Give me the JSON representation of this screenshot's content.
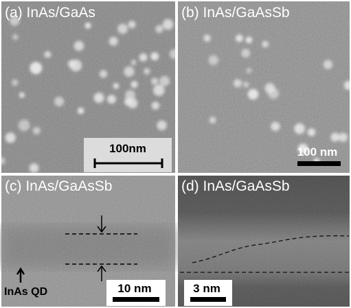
{
  "panels": [
    {
      "label": "(a) InAs/GaAs",
      "scale_bar": "100nm"
    },
    {
      "label": "(b) InAs/GaAsSb",
      "scale_bar": "100 nm"
    },
    {
      "label": "(c) InAs/GaAsSb",
      "scale_bar": "10 nm",
      "annotation": "InAs QD"
    },
    {
      "label": "(d) InAs/GaAsSb",
      "scale_bar": "3 nm"
    }
  ]
}
